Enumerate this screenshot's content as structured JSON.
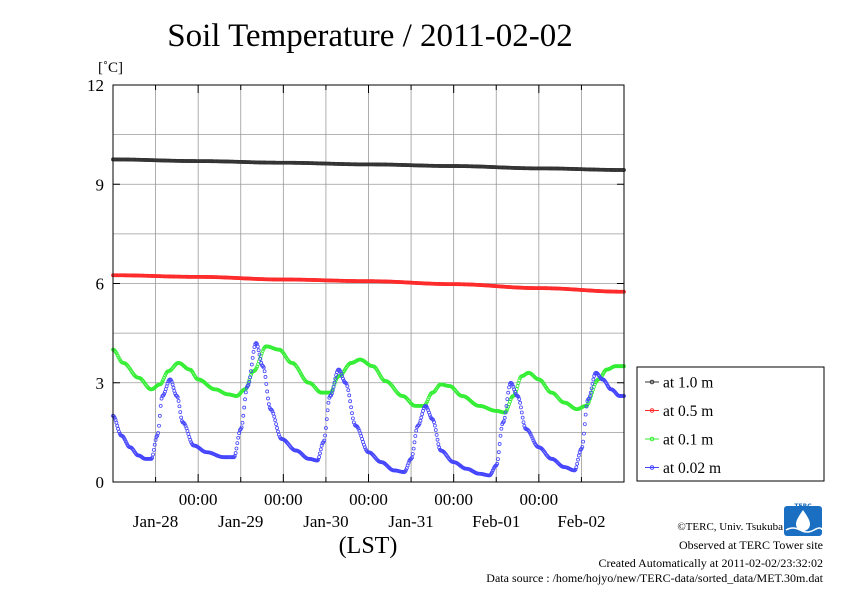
{
  "chart_data": {
    "type": "scatter",
    "title": "Soil Temperature / 2011-02-02",
    "unit_label": "[˚C]",
    "xlabel": "(LST)",
    "ylim": [
      0,
      12
    ],
    "xlim": [
      0,
      6
    ],
    "y_ticks": [
      0,
      3,
      6,
      9,
      12
    ],
    "y_tick_labels": [
      "0",
      "3",
      "6",
      "9",
      "12"
    ],
    "x_ticks": [
      1,
      2,
      3,
      4,
      5
    ],
    "x_time_labels": [
      "00:00",
      "00:00",
      "00:00",
      "00:00",
      "00:00"
    ],
    "x_day_labels": [
      {
        "x": 0.5,
        "label": "Jan-28"
      },
      {
        "x": 1.5,
        "label": "Jan-29"
      },
      {
        "x": 2.5,
        "label": "Jan-30"
      },
      {
        "x": 3.5,
        "label": "Jan-31"
      },
      {
        "x": 4.5,
        "label": "Feb-01"
      },
      {
        "x": 5.5,
        "label": "Feb-02"
      }
    ],
    "grid_x": [
      0.5,
      1,
      1.5,
      2,
      2.5,
      3,
      3.5,
      4,
      4.5,
      5,
      5.5
    ],
    "grid_y": [
      1.5,
      3,
      4.5,
      6,
      7.5,
      9,
      10.5
    ],
    "legend_position": "right",
    "series": [
      {
        "name": "at 1.0 m",
        "color": "#333333",
        "points": [
          [
            0,
            9.75
          ],
          [
            1,
            9.7
          ],
          [
            2,
            9.65
          ],
          [
            3,
            9.6
          ],
          [
            4,
            9.55
          ],
          [
            5,
            9.48
          ],
          [
            6,
            9.43
          ]
        ]
      },
      {
        "name": "at 0.5 m",
        "color": "#ff2a2a",
        "points": [
          [
            0,
            6.25
          ],
          [
            1,
            6.2
          ],
          [
            2,
            6.12
          ],
          [
            3,
            6.07
          ],
          [
            4,
            5.98
          ],
          [
            5,
            5.86
          ],
          [
            6,
            5.75
          ]
        ]
      },
      {
        "name": "at 0.1 m",
        "color": "#33ee33",
        "points": [
          [
            0,
            4.0
          ],
          [
            0.12,
            3.6
          ],
          [
            0.3,
            3.15
          ],
          [
            0.45,
            2.8
          ],
          [
            0.55,
            2.95
          ],
          [
            0.65,
            3.35
          ],
          [
            0.77,
            3.6
          ],
          [
            0.9,
            3.4
          ],
          [
            1.0,
            3.1
          ],
          [
            1.2,
            2.8
          ],
          [
            1.35,
            2.65
          ],
          [
            1.45,
            2.6
          ],
          [
            1.55,
            2.8
          ],
          [
            1.65,
            3.35
          ],
          [
            1.8,
            4.1
          ],
          [
            1.95,
            4.0
          ],
          [
            2.1,
            3.6
          ],
          [
            2.3,
            3.0
          ],
          [
            2.45,
            2.7
          ],
          [
            2.55,
            2.7
          ],
          [
            2.65,
            3.2
          ],
          [
            2.8,
            3.6
          ],
          [
            2.9,
            3.7
          ],
          [
            3.05,
            3.5
          ],
          [
            3.2,
            3.05
          ],
          [
            3.4,
            2.6
          ],
          [
            3.55,
            2.3
          ],
          [
            3.65,
            2.3
          ],
          [
            3.75,
            2.7
          ],
          [
            3.85,
            2.95
          ],
          [
            3.95,
            2.9
          ],
          [
            4.1,
            2.6
          ],
          [
            4.3,
            2.3
          ],
          [
            4.5,
            2.15
          ],
          [
            4.6,
            2.1
          ],
          [
            4.7,
            2.6
          ],
          [
            4.8,
            3.2
          ],
          [
            4.88,
            3.3
          ],
          [
            5.0,
            3.1
          ],
          [
            5.15,
            2.7
          ],
          [
            5.3,
            2.4
          ],
          [
            5.45,
            2.2
          ],
          [
            5.55,
            2.3
          ],
          [
            5.7,
            3.1
          ],
          [
            5.8,
            3.4
          ],
          [
            5.9,
            3.5
          ],
          [
            6.0,
            3.5
          ]
        ]
      },
      {
        "name": "at 0.02 m",
        "color": "#4444ff",
        "points": [
          [
            0,
            2.0
          ],
          [
            0.1,
            1.4
          ],
          [
            0.2,
            1.05
          ],
          [
            0.3,
            0.8
          ],
          [
            0.38,
            0.7
          ],
          [
            0.45,
            0.7
          ],
          [
            0.52,
            1.4
          ],
          [
            0.58,
            2.6
          ],
          [
            0.67,
            3.1
          ],
          [
            0.75,
            2.6
          ],
          [
            0.82,
            1.8
          ],
          [
            0.95,
            1.1
          ],
          [
            1.1,
            0.9
          ],
          [
            1.3,
            0.75
          ],
          [
            1.42,
            0.75
          ],
          [
            1.5,
            1.6
          ],
          [
            1.58,
            2.9
          ],
          [
            1.68,
            4.2
          ],
          [
            1.76,
            3.5
          ],
          [
            1.85,
            2.2
          ],
          [
            1.98,
            1.3
          ],
          [
            2.15,
            0.95
          ],
          [
            2.3,
            0.7
          ],
          [
            2.4,
            0.65
          ],
          [
            2.47,
            1.2
          ],
          [
            2.55,
            2.6
          ],
          [
            2.65,
            3.4
          ],
          [
            2.73,
            3.0
          ],
          [
            2.85,
            1.7
          ],
          [
            3.0,
            0.9
          ],
          [
            3.15,
            0.6
          ],
          [
            3.3,
            0.35
          ],
          [
            3.42,
            0.3
          ],
          [
            3.5,
            0.7
          ],
          [
            3.58,
            1.7
          ],
          [
            3.67,
            2.3
          ],
          [
            3.75,
            1.9
          ],
          [
            3.85,
            0.95
          ],
          [
            4.0,
            0.6
          ],
          [
            4.15,
            0.4
          ],
          [
            4.3,
            0.25
          ],
          [
            4.42,
            0.2
          ],
          [
            4.5,
            0.5
          ],
          [
            4.58,
            1.8
          ],
          [
            4.67,
            3.0
          ],
          [
            4.75,
            2.6
          ],
          [
            4.85,
            1.6
          ],
          [
            5.0,
            1.05
          ],
          [
            5.15,
            0.7
          ],
          [
            5.3,
            0.45
          ],
          [
            5.42,
            0.35
          ],
          [
            5.5,
            1.0
          ],
          [
            5.58,
            2.5
          ],
          [
            5.67,
            3.3
          ],
          [
            5.75,
            3.1
          ],
          [
            5.85,
            2.8
          ],
          [
            5.95,
            2.6
          ],
          [
            6.0,
            2.6
          ]
        ]
      }
    ]
  },
  "credits": {
    "copyright": "©TERC, Univ. Tsukuba",
    "observed": "Observed at TERC Tower site",
    "created": "Created Automatically at 2011-02-02/23:32:02",
    "source": "Data source : /home/hojyo/new/TERC-data/sorted_data/MET.30m.dat"
  },
  "logo": {
    "text": "TERC",
    "color": "#1a6fc2"
  }
}
